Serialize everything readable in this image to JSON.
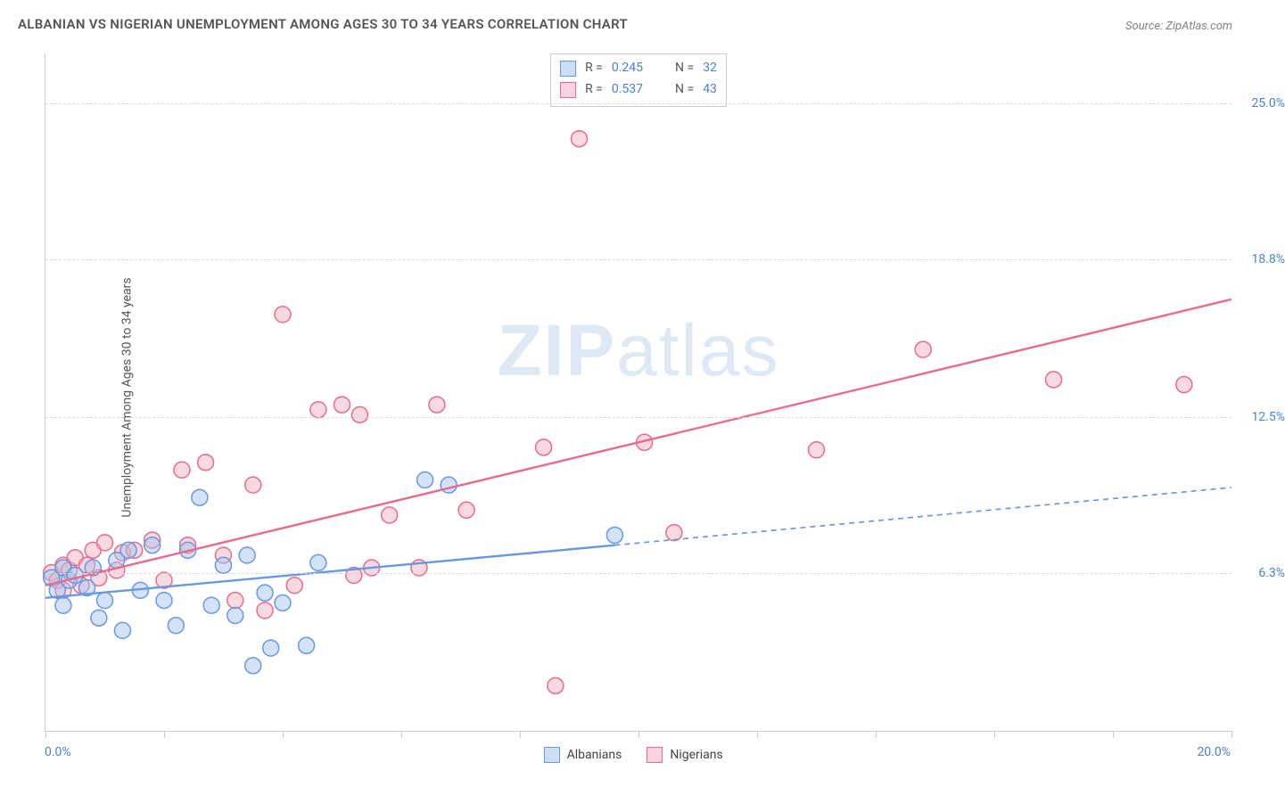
{
  "title": "ALBANIAN VS NIGERIAN UNEMPLOYMENT AMONG AGES 30 TO 34 YEARS CORRELATION CHART",
  "source": "Source: ZipAtlas.com",
  "y_axis_label": "Unemployment Among Ages 30 to 34 years",
  "watermark_bold": "ZIP",
  "watermark_light": "atlas",
  "chart": {
    "type": "scatter",
    "background_color": "#ffffff",
    "grid_color": "#d8d8d8",
    "axis_color": "#cccccc",
    "tick_color": "#cccccc",
    "label_color": "#4a80d6",
    "text_color": "#555555",
    "xlim": [
      0.0,
      20.0
    ],
    "ylim": [
      0.0,
      27.0
    ],
    "x_min_label": "0.0%",
    "x_max_label": "20.0%",
    "x_tick_positions_pct": [
      0,
      10,
      20,
      30,
      40,
      50,
      60,
      70,
      80,
      90,
      100
    ],
    "y_gridlines": [
      {
        "value": 6.3,
        "label": "6.3%"
      },
      {
        "value": 12.5,
        "label": "12.5%"
      },
      {
        "value": 18.8,
        "label": "18.8%"
      },
      {
        "value": 25.0,
        "label": "25.0%"
      }
    ],
    "marker_radius": 9,
    "marker_stroke_width": 1.5,
    "marker_fill_opacity": 0.25,
    "series": [
      {
        "name": "Albanians",
        "color_stroke": "#6798e0",
        "color_fill": "#a8c5ed",
        "swatch_border": "#6798e0",
        "swatch_fill": "#cddff5",
        "R": "0.245",
        "N": "32",
        "regression": {
          "x1": 0.0,
          "y1": 5.3,
          "x2": 9.6,
          "y2": 7.4,
          "extend_to_x": 20.0,
          "extend_to_y": 9.7,
          "width": 2.4,
          "dash": "6,5"
        },
        "points": [
          [
            0.1,
            6.1
          ],
          [
            0.2,
            5.6
          ],
          [
            0.3,
            6.5
          ],
          [
            0.3,
            5.0
          ],
          [
            0.4,
            6.0
          ],
          [
            0.5,
            6.2
          ],
          [
            0.7,
            5.7
          ],
          [
            0.8,
            6.5
          ],
          [
            0.9,
            4.5
          ],
          [
            1.0,
            5.2
          ],
          [
            1.2,
            6.8
          ],
          [
            1.3,
            4.0
          ],
          [
            1.4,
            7.2
          ],
          [
            1.6,
            5.6
          ],
          [
            1.8,
            7.4
          ],
          [
            2.0,
            5.2
          ],
          [
            2.2,
            4.2
          ],
          [
            2.4,
            7.2
          ],
          [
            2.6,
            9.3
          ],
          [
            2.8,
            5.0
          ],
          [
            3.0,
            6.6
          ],
          [
            3.2,
            4.6
          ],
          [
            3.4,
            7.0
          ],
          [
            3.5,
            2.6
          ],
          [
            3.7,
            5.5
          ],
          [
            3.8,
            3.3
          ],
          [
            4.0,
            5.1
          ],
          [
            4.4,
            3.4
          ],
          [
            4.6,
            6.7
          ],
          [
            6.4,
            10.0
          ],
          [
            6.8,
            9.8
          ],
          [
            9.6,
            7.8
          ]
        ]
      },
      {
        "name": "Nigerians",
        "color_stroke": "#e86b8c",
        "color_fill": "#f4b3c4",
        "swatch_border": "#e86b8c",
        "swatch_fill": "#fad3de",
        "R": "0.537",
        "N": "43",
        "regression": {
          "x1": 0.0,
          "y1": 5.8,
          "x2": 20.0,
          "y2": 17.2,
          "extend_to_x": null,
          "extend_to_y": null,
          "width": 2.4,
          "dash": null
        },
        "points": [
          [
            0.1,
            6.3
          ],
          [
            0.2,
            6.0
          ],
          [
            0.3,
            6.6
          ],
          [
            0.3,
            5.6
          ],
          [
            0.4,
            6.4
          ],
          [
            0.5,
            6.9
          ],
          [
            0.6,
            5.8
          ],
          [
            0.7,
            6.6
          ],
          [
            0.8,
            7.2
          ],
          [
            0.9,
            6.1
          ],
          [
            1.0,
            7.5
          ],
          [
            1.2,
            6.4
          ],
          [
            1.3,
            7.1
          ],
          [
            1.5,
            7.2
          ],
          [
            1.8,
            7.6
          ],
          [
            2.0,
            6.0
          ],
          [
            2.3,
            10.4
          ],
          [
            2.4,
            7.4
          ],
          [
            2.7,
            10.7
          ],
          [
            3.0,
            7.0
          ],
          [
            3.2,
            5.2
          ],
          [
            3.5,
            9.8
          ],
          [
            3.7,
            4.8
          ],
          [
            4.0,
            16.6
          ],
          [
            4.2,
            5.8
          ],
          [
            4.6,
            12.8
          ],
          [
            5.0,
            13.0
          ],
          [
            5.3,
            12.6
          ],
          [
            5.5,
            6.5
          ],
          [
            5.8,
            8.6
          ],
          [
            6.3,
            6.5
          ],
          [
            6.6,
            13.0
          ],
          [
            7.1,
            8.8
          ],
          [
            8.4,
            11.3
          ],
          [
            8.6,
            1.8
          ],
          [
            9.0,
            23.6
          ],
          [
            10.1,
            11.5
          ],
          [
            10.6,
            7.9
          ],
          [
            13.0,
            11.2
          ],
          [
            14.8,
            15.2
          ],
          [
            17.0,
            14.0
          ],
          [
            19.2,
            13.8
          ],
          [
            5.2,
            6.2
          ]
        ]
      }
    ],
    "legend": {
      "series1_label": "Albanians",
      "series2_label": "Nigerians",
      "R_label": "R =",
      "N_label": "N ="
    }
  }
}
